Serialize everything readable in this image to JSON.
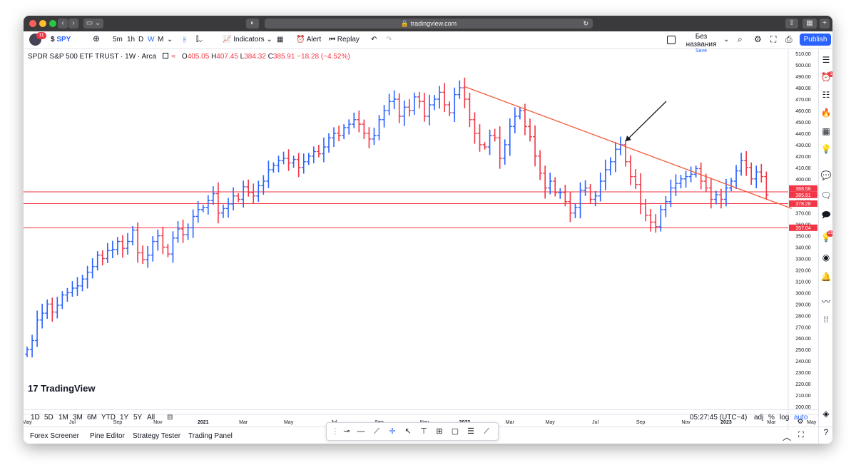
{
  "browser": {
    "url": "tradingview.com"
  },
  "toolbar": {
    "avatar_badge": "11",
    "symbol": "SPY",
    "intervals": [
      "5m",
      "1h",
      "D",
      "W",
      "M"
    ],
    "indicators_label": "Indicators",
    "alert_label": "Alert",
    "replay_label": "Replay",
    "layout_name": "Без названия",
    "layout_status": "Save",
    "publish_label": "Publish"
  },
  "legend": {
    "title": "SPDR S&P 500 ETF TRUST · 1W · Arca",
    "o_label": "O",
    "o": "405.05",
    "h_label": "H",
    "h": "407.45",
    "l_label": "L",
    "l": "384.32",
    "c_label": "C",
    "c": "385.91",
    "change": "−18.28 (−4.52%)"
  },
  "chart_data": {
    "type": "ohlc-bar",
    "symbol": "SPY",
    "interval": "1W",
    "ylim": [
      195,
      512
    ],
    "y_ticks": [
      "200.00",
      "210.00",
      "220.00",
      "230.00",
      "240.00",
      "250.00",
      "260.00",
      "270.00",
      "280.00",
      "290.00",
      "300.00",
      "310.00",
      "320.00",
      "330.00",
      "340.00",
      "350.00",
      "360.00",
      "370.00",
      "380.00",
      "390.00",
      "400.00",
      "410.00",
      "420.00",
      "430.00",
      "440.00",
      "450.00",
      "460.00",
      "470.00",
      "480.00",
      "490.00",
      "500.00",
      "510.00"
    ],
    "x_ticks": [
      {
        "label": "May",
        "week": 0,
        "bold": false
      },
      {
        "label": "Jul",
        "week": 9,
        "bold": false
      },
      {
        "label": "Sep",
        "week": 18,
        "bold": false
      },
      {
        "label": "Nov",
        "week": 26,
        "bold": false
      },
      {
        "label": "2021",
        "week": 35,
        "bold": true
      },
      {
        "label": "Mar",
        "week": 43,
        "bold": false
      },
      {
        "label": "May",
        "week": 52,
        "bold": false
      },
      {
        "label": "Jul",
        "week": 61,
        "bold": false
      },
      {
        "label": "Sep",
        "week": 70,
        "bold": false
      },
      {
        "label": "Nov",
        "week": 79,
        "bold": false
      },
      {
        "label": "2022",
        "week": 87,
        "bold": true
      },
      {
        "label": "Mar",
        "week": 96,
        "bold": false
      },
      {
        "label": "May",
        "week": 104,
        "bold": false
      },
      {
        "label": "Jul",
        "week": 113,
        "bold": false
      },
      {
        "label": "Sep",
        "week": 122,
        "bold": false
      },
      {
        "label": "Nov",
        "week": 131,
        "bold": false
      },
      {
        "label": "2023",
        "week": 139,
        "bold": true
      },
      {
        "label": "Mar",
        "week": 148,
        "bold": false
      },
      {
        "label": "May",
        "week": 156,
        "bold": false
      }
    ],
    "closes": [
      250,
      258,
      276,
      282,
      290,
      283,
      289,
      298,
      300,
      304,
      306,
      312,
      318,
      323,
      333,
      330,
      337,
      338,
      345,
      339,
      345,
      355,
      335,
      329,
      333,
      345,
      350,
      340,
      334,
      348,
      356,
      351,
      357,
      367,
      373,
      375,
      381,
      387,
      370,
      374,
      378,
      385,
      382,
      393,
      388,
      385,
      394,
      398,
      408,
      412,
      416,
      418,
      414,
      417,
      410,
      415,
      420,
      424,
      422,
      428,
      436,
      440,
      438,
      445,
      448,
      452,
      448,
      440,
      435,
      438,
      452,
      460,
      468,
      470,
      455,
      463,
      460,
      472,
      468,
      455,
      465,
      470,
      476,
      465,
      458,
      474,
      480,
      470,
      452,
      440,
      430,
      428,
      438,
      436,
      418,
      430,
      446,
      455,
      460,
      446,
      437,
      420,
      405,
      392,
      398,
      388,
      388,
      380,
      370,
      375,
      390,
      392,
      382,
      385,
      398,
      408,
      415,
      426,
      430,
      415,
      402,
      395,
      378,
      368,
      362,
      358,
      373,
      380,
      392,
      396,
      400,
      402,
      404,
      409,
      398,
      392,
      382,
      386,
      382,
      392,
      398,
      407,
      416,
      410,
      400,
      406,
      402,
      386
    ],
    "price_labels": [
      {
        "text": "388.58",
        "price": 388.58,
        "color": "#f23645"
      },
      {
        "text": "385.91",
        "price": 385.91,
        "color": "#f23645"
      },
      {
        "text": "378.28",
        "price": 378.28,
        "color": "#f23645"
      },
      {
        "text": "357.04",
        "price": 357.04,
        "color": "#f23645"
      }
    ],
    "horizontal_levels": [
      388.58,
      378.28,
      357.04
    ],
    "trendline": {
      "from": {
        "week": 87,
        "price": 481
      },
      "to": {
        "week": 152,
        "price": 374
      }
    },
    "arrow_annotation": {
      "points_to": {
        "week": 119,
        "price": 433
      }
    },
    "colors": {
      "up": "#2962ff",
      "down": "#f23645",
      "lines": "#f23645",
      "trendline": "#f2593a"
    }
  },
  "bottombar": {
    "ranges": [
      "1D",
      "5D",
      "1M",
      "3M",
      "6M",
      "YTD",
      "1Y",
      "5Y",
      "All"
    ],
    "time": "05:27:45 (UTC−4)",
    "adj": "adj",
    "percent": "%",
    "log": "log",
    "auto": "auto"
  },
  "panels": {
    "items": [
      "Forex Screener",
      "Pine Editor",
      "Strategy Tester",
      "Trading Panel"
    ]
  },
  "watermark": "TradingView",
  "sidebar_badges": {
    "b1": "1",
    "b2": "31"
  }
}
